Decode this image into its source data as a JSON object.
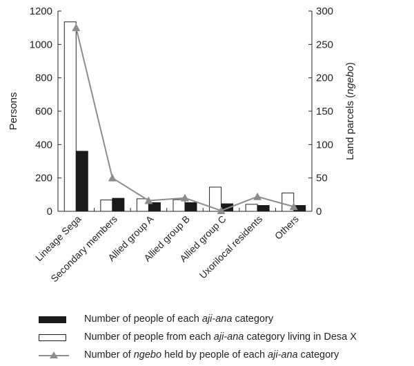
{
  "chart_data": {
    "type": "bar",
    "categories": [
      "Lineage Sega",
      "Secondary members",
      "Allied group A",
      "Allied group B",
      "Allied group C",
      "Uxorilocal residents",
      "Others"
    ],
    "ylabel_left": "Persons",
    "ylabel_right_parts": [
      "Land parcels (",
      "ngebo",
      ")"
    ],
    "ylim_left": [
      0,
      1200
    ],
    "ylim_right": [
      0,
      300
    ],
    "yticks_left": [
      "0",
      "200",
      "400",
      "600",
      "800",
      "1000",
      "1200"
    ],
    "yticks_right": [
      "0",
      "50",
      "100",
      "150",
      "200",
      "250",
      "300"
    ],
    "series": [
      {
        "name": "Number of people from each aji-ana category living in Desa X",
        "style": "white",
        "axis": "left",
        "values": [
          1135,
          68,
          75,
          70,
          145,
          42,
          110
        ]
      },
      {
        "name": "Number of people of each aji-ana category",
        "style": "black",
        "axis": "left",
        "values": [
          360,
          78,
          52,
          52,
          45,
          35,
          35
        ]
      },
      {
        "name": "Number of ngebo held by people of each aji-ana category",
        "style": "line",
        "axis": "right",
        "values": [
          275,
          50,
          16,
          20,
          1,
          22,
          7
        ]
      }
    ],
    "colors": {
      "black_bar": "#1a1a1a",
      "line": "#8c8c8c",
      "marker": "#8c8c8c"
    }
  },
  "legend": [
    {
      "style": "black",
      "parts": [
        "Number of people of each ",
        "aji-ana",
        " category"
      ]
    },
    {
      "style": "white",
      "parts": [
        "Number of people from each ",
        "aji-ana",
        " category living in Desa X"
      ]
    },
    {
      "style": "line",
      "parts": [
        "Number of ",
        "ngebo",
        " held by people of each ",
        "aji-ana",
        " category"
      ]
    }
  ]
}
